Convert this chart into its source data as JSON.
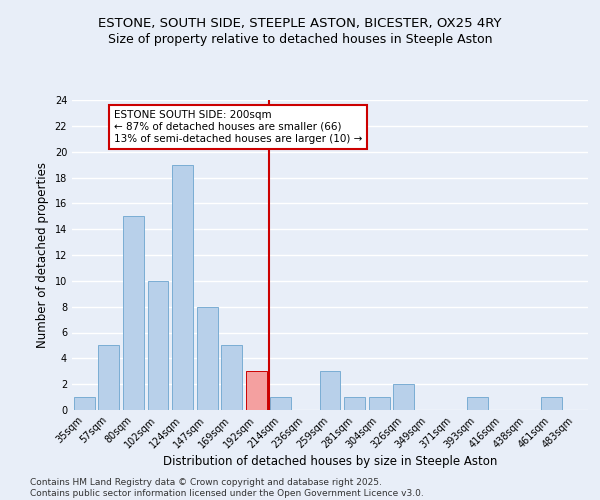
{
  "title": "ESTONE, SOUTH SIDE, STEEPLE ASTON, BICESTER, OX25 4RY",
  "subtitle": "Size of property relative to detached houses in Steeple Aston",
  "xlabel": "Distribution of detached houses by size in Steeple Aston",
  "ylabel": "Number of detached properties",
  "categories": [
    "35sqm",
    "57sqm",
    "80sqm",
    "102sqm",
    "124sqm",
    "147sqm",
    "169sqm",
    "192sqm",
    "214sqm",
    "236sqm",
    "259sqm",
    "281sqm",
    "304sqm",
    "326sqm",
    "349sqm",
    "371sqm",
    "393sqm",
    "416sqm",
    "438sqm",
    "461sqm",
    "483sqm"
  ],
  "values": [
    1,
    5,
    15,
    10,
    19,
    8,
    5,
    3,
    1,
    0,
    3,
    1,
    1,
    2,
    0,
    0,
    1,
    0,
    0,
    1,
    0
  ],
  "bar_color": "#b8d0ea",
  "bar_edge_color": "#7aadd4",
  "highlight_bar_index": 7,
  "highlight_bar_color": "#f4a0a0",
  "highlight_bar_edge_color": "#cc0000",
  "vline_color": "#cc0000",
  "annotation_text": "ESTONE SOUTH SIDE: 200sqm\n← 87% of detached houses are smaller (66)\n13% of semi-detached houses are larger (10) →",
  "annotation_box_color": "#ffffff",
  "annotation_box_edge_color": "#cc0000",
  "ylim": [
    0,
    24
  ],
  "yticks": [
    0,
    2,
    4,
    6,
    8,
    10,
    12,
    14,
    16,
    18,
    20,
    22,
    24
  ],
  "footer_line1": "Contains HM Land Registry data © Crown copyright and database right 2025.",
  "footer_line2": "Contains public sector information licensed under the Open Government Licence v3.0.",
  "bg_color": "#e8eef8",
  "grid_color": "#ffffff",
  "title_fontsize": 9.5,
  "subtitle_fontsize": 9,
  "axis_label_fontsize": 8.5,
  "tick_fontsize": 7,
  "annotation_fontsize": 7.5,
  "footer_fontsize": 6.5
}
